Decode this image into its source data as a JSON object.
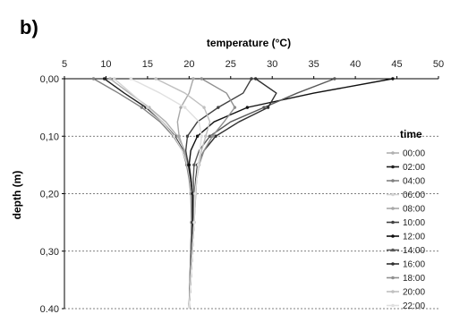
{
  "panel_label": "b)",
  "chart_data": {
    "type": "line",
    "title": "",
    "xlabel": "temperature (°C)",
    "ylabel": "depth (m)",
    "xlim": [
      5,
      50
    ],
    "ylim": [
      0.0,
      0.4
    ],
    "y_inverted": true,
    "x_axis_position": "top",
    "x_ticks": [
      "5",
      "10",
      "15",
      "20",
      "25",
      "30",
      "35",
      "40",
      "45",
      "50"
    ],
    "y_ticks": [
      "0,00",
      "0,10",
      "0,20",
      "0,30",
      "0.40"
    ],
    "grid": "horizontal dashed",
    "legend_title": "time",
    "legend_position": "right",
    "depth": [
      0.0,
      0.025,
      0.05,
      0.075,
      0.1,
      0.125,
      0.15,
      0.175,
      0.2,
      0.25,
      0.3,
      0.35,
      0.4
    ],
    "series": [
      {
        "name": "00:00",
        "color": "#b0b0b0",
        "values": [
          10.5,
          12.8,
          15.2,
          17.2,
          18.6,
          19.5,
          20.0,
          20.3,
          20.4,
          20.4,
          20.3,
          20.2,
          20.0
        ]
      },
      {
        "name": "02:00",
        "color": "#202020",
        "values": [
          9.8,
          12.2,
          14.8,
          16.8,
          18.3,
          19.3,
          19.8,
          20.1,
          20.3,
          20.3,
          20.2,
          20.1,
          20.0
        ]
      },
      {
        "name": "04:00",
        "color": "#808080",
        "values": [
          8.5,
          11.5,
          14.3,
          16.5,
          18.1,
          19.2,
          19.7,
          20.0,
          20.2,
          20.3,
          20.2,
          20.1,
          20.0
        ]
      },
      {
        "name": "06:00",
        "color": "#d4d4d4",
        "values": [
          11.0,
          13.0,
          15.0,
          16.8,
          18.2,
          19.2,
          19.8,
          20.1,
          20.3,
          20.4,
          20.3,
          20.2,
          20.0
        ]
      },
      {
        "name": "08:00",
        "color": "#a8a8a8",
        "values": [
          20.5,
          20.0,
          19.0,
          18.6,
          18.8,
          19.4,
          19.9,
          20.2,
          20.4,
          20.4,
          20.3,
          20.2,
          20.0
        ]
      },
      {
        "name": "10:00",
        "color": "#404040",
        "values": [
          27.5,
          26.5,
          23.5,
          21.0,
          19.8,
          19.6,
          19.9,
          20.2,
          20.4,
          20.4,
          20.3,
          20.2,
          20.0
        ]
      },
      {
        "name": "12:00",
        "color": "#101010",
        "values": [
          44.5,
          35.0,
          27.0,
          23.0,
          21.0,
          20.2,
          20.0,
          20.2,
          20.4,
          20.5,
          20.4,
          20.2,
          20.0
        ]
      },
      {
        "name": "14:00",
        "color": "#585858",
        "values": [
          37.5,
          33.0,
          29.0,
          25.0,
          22.5,
          21.2,
          20.6,
          20.5,
          20.6,
          20.6,
          20.4,
          20.2,
          20.0
        ]
      },
      {
        "name": "16:00",
        "color": "#303030",
        "values": [
          28.0,
          30.5,
          29.5,
          26.0,
          23.2,
          21.8,
          21.0,
          20.8,
          20.7,
          20.6,
          20.4,
          20.2,
          20.0
        ]
      },
      {
        "name": "18:00",
        "color": "#909090",
        "values": [
          21.5,
          24.5,
          25.5,
          24.2,
          22.8,
          21.8,
          21.2,
          20.9,
          20.8,
          20.6,
          20.4,
          20.2,
          20.0
        ]
      },
      {
        "name": "20:00",
        "color": "#c0c0c0",
        "values": [
          16.0,
          19.5,
          21.8,
          22.5,
          22.0,
          21.5,
          21.2,
          20.9,
          20.8,
          20.6,
          20.4,
          20.2,
          20.0
        ]
      },
      {
        "name": "22:00",
        "color": "#e0e0e0",
        "values": [
          13.0,
          16.5,
          19.5,
          21.2,
          21.5,
          21.3,
          21.1,
          20.9,
          20.7,
          20.6,
          20.4,
          20.2,
          20.0
        ]
      }
    ]
  }
}
